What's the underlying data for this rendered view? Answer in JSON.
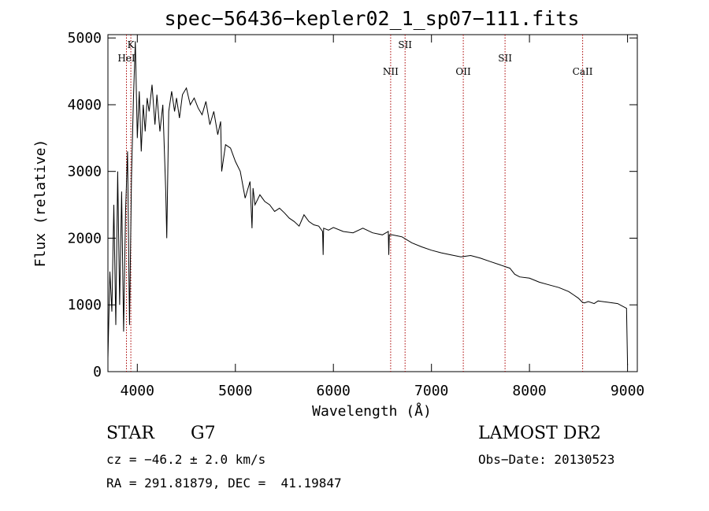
{
  "chart_data": {
    "type": "line",
    "title": "spec−56436−kepler02_1_sp07−111.fits",
    "xlabel": "Wavelength (Å)",
    "ylabel": "Flux (relative)",
    "xlim": [
      3700,
      9100
    ],
    "ylim": [
      0,
      5050
    ],
    "xticks": [
      4000,
      5000,
      6000,
      7000,
      8000,
      9000
    ],
    "yticks": [
      0,
      1000,
      2000,
      3000,
      4000,
      5000
    ],
    "line_color": "#000000",
    "marker_color": "#aa0000",
    "series": [
      {
        "x": [
          3700,
          3720,
          3740,
          3760,
          3780,
          3800,
          3820,
          3840,
          3860,
          3880,
          3900,
          3920,
          3940,
          3960,
          3980,
          4000,
          4020,
          4040,
          4060,
          4080,
          4100,
          4120,
          4150,
          4180,
          4200,
          4230,
          4260,
          4290,
          4300,
          4320,
          4350,
          4380,
          4400,
          4430,
          4460,
          4500,
          4540,
          4580,
          4620,
          4660,
          4700,
          4740,
          4780,
          4820,
          4850,
          4860,
          4900,
          4950,
          5000,
          5050,
          5100,
          5150,
          5170,
          5180,
          5200,
          5250,
          5300,
          5350,
          5400,
          5450,
          5500,
          5550,
          5600,
          5650,
          5700,
          5750,
          5800,
          5850,
          5890,
          5895,
          5900,
          5950,
          6000,
          6100,
          6200,
          6300,
          6400,
          6500,
          6560,
          6565,
          6570,
          6600,
          6700,
          6800,
          6900,
          7000,
          7100,
          7200,
          7300,
          7400,
          7500,
          7600,
          7700,
          7800,
          7850,
          7900,
          8000,
          8100,
          8200,
          8300,
          8400,
          8450,
          8500,
          8540,
          8560,
          8600,
          8660,
          8700,
          8800,
          8900,
          8950,
          8990,
          9000
        ],
        "y": [
          200,
          1500,
          900,
          2500,
          700,
          3000,
          1000,
          2700,
          600,
          2400,
          3300,
          700,
          2900,
          4100,
          4950,
          3500,
          4200,
          3300,
          4000,
          3600,
          4100,
          3900,
          4300,
          3700,
          4150,
          3600,
          4000,
          2700,
          2000,
          3900,
          4200,
          3900,
          4100,
          3800,
          4150,
          4250,
          4000,
          4100,
          3950,
          3850,
          4050,
          3700,
          3900,
          3550,
          3750,
          3000,
          3400,
          3350,
          3150,
          3000,
          2600,
          2850,
          2150,
          2750,
          2500,
          2650,
          2550,
          2500,
          2400,
          2450,
          2380,
          2300,
          2250,
          2180,
          2350,
          2250,
          2200,
          2180,
          2100,
          1750,
          2150,
          2120,
          2160,
          2100,
          2080,
          2150,
          2080,
          2050,
          2100,
          1750,
          2050,
          2050,
          2020,
          1930,
          1870,
          1820,
          1780,
          1750,
          1720,
          1740,
          1700,
          1650,
          1600,
          1550,
          1460,
          1420,
          1400,
          1340,
          1300,
          1260,
          1200,
          1150,
          1100,
          1040,
          1030,
          1050,
          1020,
          1060,
          1040,
          1020,
          980,
          950,
          100
        ]
      }
    ],
    "lines": [
      {
        "name": "K",
        "x": 3934,
        "row": 1
      },
      {
        "name": "HeI",
        "x": 3889,
        "row": 2
      },
      {
        "name": "NII",
        "x": 6584,
        "row": 3
      },
      {
        "name": "SII",
        "x": 6731,
        "row": 1
      },
      {
        "name": "OII",
        "x": 7325,
        "row": 3
      },
      {
        "name": "SII",
        "x": 7751,
        "row": 2
      },
      {
        "name": "CaII",
        "x": 8542,
        "row": 3
      }
    ]
  },
  "info": {
    "object_type": "STAR",
    "subclass": "G7",
    "survey": "LAMOST DR2",
    "cz": "cz = −46.2 ± 2.0 km/s",
    "obs_date": "Obs−Date: 20130523",
    "coords": "RA = 291.81879, DEC =  41.19847"
  }
}
